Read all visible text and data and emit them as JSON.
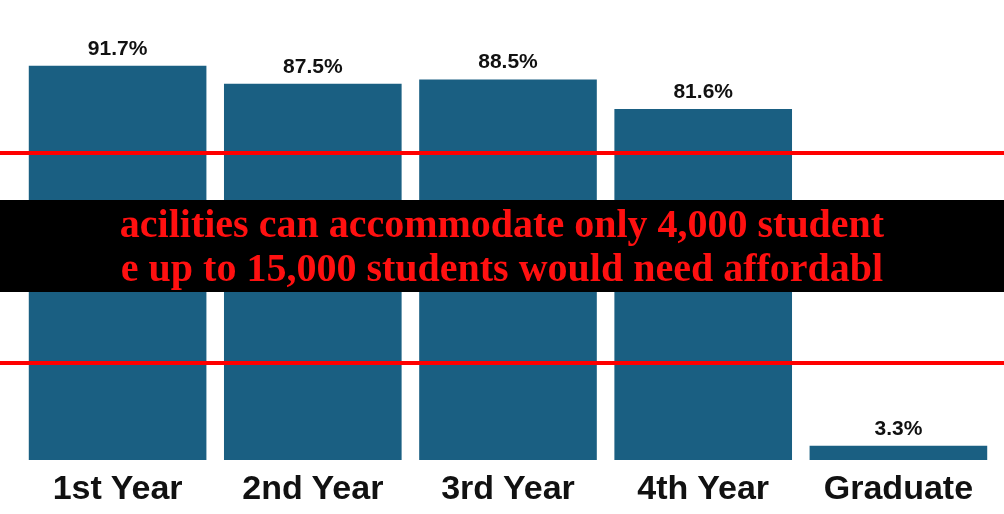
{
  "chart_data": {
    "type": "bar",
    "categories": [
      "1st Year",
      "2nd Year",
      "3rd Year",
      "4th Year",
      "Graduate"
    ],
    "values": [
      91.7,
      87.5,
      88.5,
      81.6,
      3.3
    ],
    "color": "#1a5f82",
    "data_labels": true,
    "grid": false,
    "value_labels": [
      "91.7%",
      "87.5%",
      "88.5%",
      "81.6%",
      "3.3%"
    ],
    "annotations": [
      "acilities can accommodate only 4,000 student",
      "e up to 15,000 students would need affordabl"
    ]
  }
}
